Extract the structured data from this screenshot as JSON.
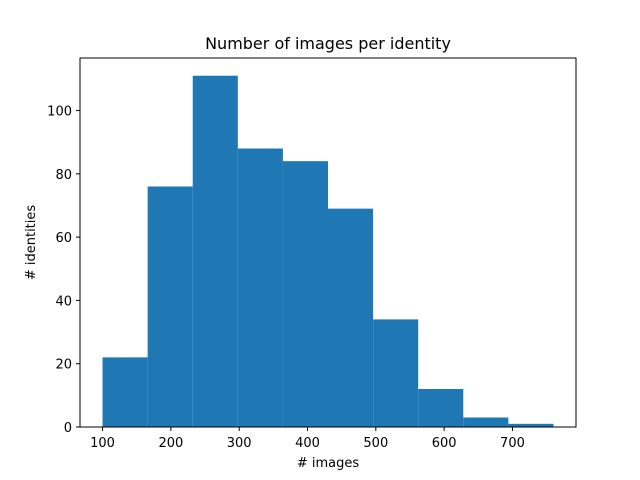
{
  "chart_data": {
    "type": "bar",
    "subtype": "histogram",
    "title": "Number of images per identity",
    "xlabel": "# images",
    "ylabel": "# identities",
    "bin_edges": [
      100,
      166,
      232,
      298,
      364,
      430,
      496,
      562,
      628,
      694,
      760
    ],
    "values": [
      22,
      76,
      111,
      88,
      84,
      69,
      34,
      12,
      3,
      1
    ],
    "xlim": [
      67,
      793
    ],
    "ylim": [
      0,
      116.6
    ],
    "xticks": [
      100,
      200,
      300,
      400,
      500,
      600,
      700
    ],
    "yticks": [
      0,
      20,
      40,
      60,
      80,
      100
    ],
    "bar_color": "#1f77b4",
    "grid": false
  }
}
